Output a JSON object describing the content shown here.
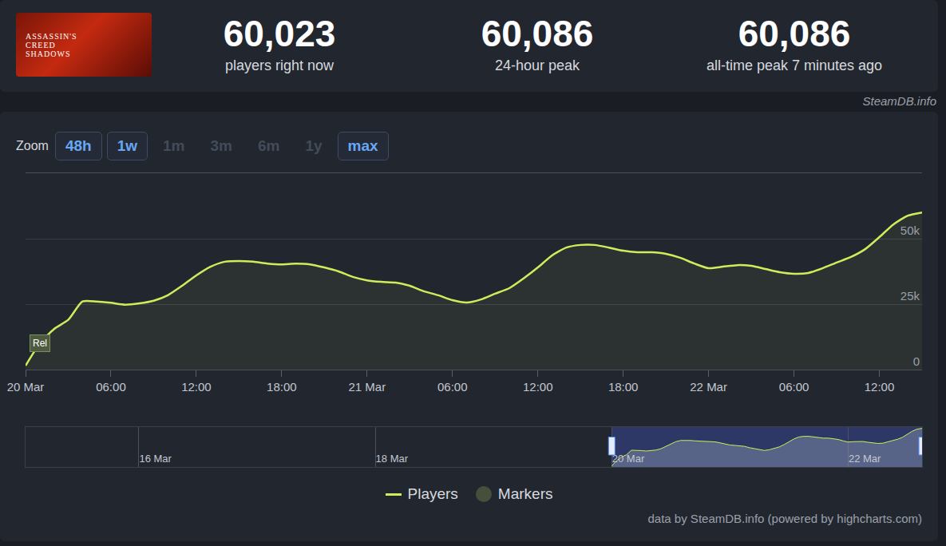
{
  "header": {
    "thumbnail_text": [
      "ASSASSIN'S",
      "CREED",
      "SHADOWS"
    ],
    "stats": [
      {
        "value": "60,023",
        "label": "players right now"
      },
      {
        "value": "60,086",
        "label": "24-hour peak"
      },
      {
        "value": "60,086",
        "label": "all-time peak 7 minutes ago"
      }
    ],
    "credit": "SteamDB.info"
  },
  "zoom": {
    "label": "Zoom",
    "buttons": [
      {
        "text": "48h",
        "active": true
      },
      {
        "text": "1w",
        "active": true
      },
      {
        "text": "1m",
        "active": false
      },
      {
        "text": "3m",
        "active": false
      },
      {
        "text": "6m",
        "active": false
      },
      {
        "text": "1y",
        "active": false
      },
      {
        "text": "max",
        "active": true
      }
    ]
  },
  "chart_data": {
    "type": "area",
    "categories": [
      "20 Mar",
      null,
      null,
      null,
      null,
      null,
      "06:00",
      null,
      null,
      null,
      null,
      null,
      "12:00",
      null,
      null,
      null,
      null,
      null,
      "18:00",
      null,
      null,
      null,
      null,
      null,
      "21 Mar",
      null,
      null,
      null,
      null,
      null,
      "06:00",
      null,
      null,
      null,
      null,
      null,
      "12:00",
      null,
      null,
      null,
      null,
      null,
      "18:00",
      null,
      null,
      null,
      null,
      null,
      "22 Mar",
      null,
      null,
      null,
      null,
      null,
      "06:00",
      null,
      null,
      null,
      null,
      null,
      "12:00",
      null,
      null,
      null
    ],
    "series": [
      {
        "name": "Players",
        "color": "#cdee5b",
        "values": [
          1500,
          10000,
          15500,
          19000,
          26000,
          26000,
          25500,
          24800,
          25300,
          26300,
          28400,
          32000,
          36000,
          39300,
          41200,
          41500,
          41200,
          40500,
          40200,
          40500,
          40200,
          39000,
          37500,
          35400,
          34100,
          33500,
          33200,
          32000,
          29900,
          28400,
          26500,
          25600,
          26800,
          29000,
          31100,
          34800,
          39000,
          43600,
          46600,
          47600,
          47600,
          46600,
          45400,
          44800,
          44800,
          44200,
          42700,
          40500,
          38700,
          39300,
          39900,
          39600,
          38400,
          37200,
          36600,
          36900,
          38700,
          40900,
          43000,
          46000,
          50600,
          55500,
          58800,
          60023
        ]
      }
    ],
    "ylim": [
      0,
      75000
    ],
    "yticks": [
      0,
      {
        "value": 25000,
        "label": "25k"
      },
      {
        "value": 50000,
        "label": "50k"
      }
    ],
    "grid": true,
    "legend": "bottom",
    "markers": {
      "name": "Markers",
      "items": [
        {
          "text": "Rel",
          "index": 1
        }
      ]
    },
    "navigator": {
      "xlim": [
        -119,
        63
      ],
      "xticks": [
        {
          "value": -96,
          "label": "16 Mar"
        },
        {
          "value": -48,
          "label": "18 Mar"
        },
        {
          "value": 0,
          "label": "20 Mar"
        },
        {
          "value": 48,
          "label": "22 Mar"
        }
      ],
      "ylim": [
        0,
        62000
      ]
    }
  },
  "footer": "data by SteamDB.info (powered by highcharts.com)"
}
